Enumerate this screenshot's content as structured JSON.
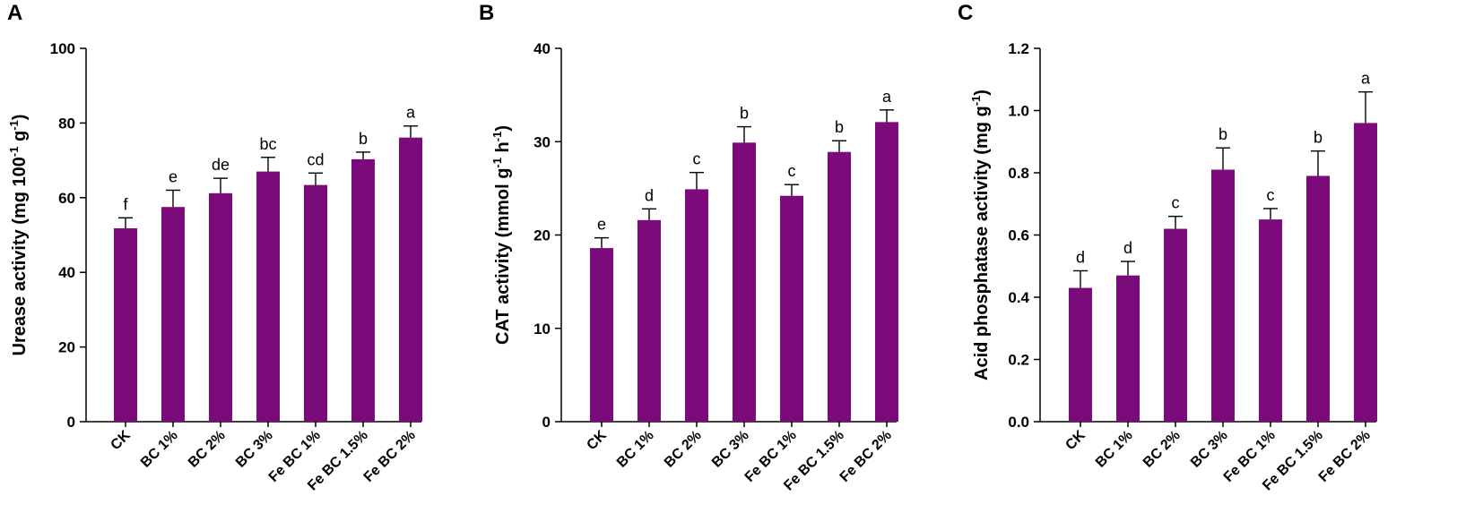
{
  "chart_data": [
    {
      "type": "bar",
      "panel": "A",
      "categories": [
        "CK",
        "BC 1%",
        "BC 2%",
        "BC 3%",
        "Fe BC 1%",
        "Fe BC 1.5%",
        "Fe BC 2%"
      ],
      "values": [
        51.8,
        57.5,
        61.2,
        67.0,
        63.4,
        70.3,
        76.1
      ],
      "errors": [
        2.8,
        4.5,
        4.0,
        3.8,
        3.2,
        1.9,
        3.1
      ],
      "significance": [
        "f",
        "e",
        "de",
        "bc",
        "cd",
        "b",
        "a"
      ],
      "ylabel": "Urease activity",
      "ylabel_unit": "(mg 100",
      "ylabel_sup1": "-1",
      "ylabel_unit2": "g",
      "ylabel_sup2": "-1",
      "ylabel_close": ")",
      "ylim": [
        0,
        100
      ],
      "yticks": [
        0,
        20,
        40,
        60,
        80,
        100
      ],
      "ytick_labels": [
        "0",
        "20",
        "40",
        "60",
        "80",
        "100"
      ],
      "color": "#7b0a7b"
    },
    {
      "type": "bar",
      "panel": "B",
      "categories": [
        "CK",
        "BC 1%",
        "BC 2%",
        "BC 3%",
        "Fe BC 1%",
        "Fe BC 1.5%",
        "Fe BC 2%"
      ],
      "values": [
        18.6,
        21.6,
        24.9,
        29.9,
        24.2,
        28.9,
        32.1
      ],
      "errors": [
        1.1,
        1.2,
        1.8,
        1.7,
        1.2,
        1.2,
        1.3
      ],
      "significance": [
        "e",
        "d",
        "c",
        "b",
        "c",
        "b",
        "a"
      ],
      "ylabel": "CAT activity",
      "ylabel_unit": "(mmol g",
      "ylabel_sup1": "-1",
      "ylabel_unit2": "h",
      "ylabel_sup2": "-1",
      "ylabel_close": ")",
      "ylim": [
        0,
        40
      ],
      "yticks": [
        0,
        10,
        20,
        30,
        40
      ],
      "ytick_labels": [
        "0",
        "10",
        "20",
        "30",
        "40"
      ],
      "color": "#7b0a7b"
    },
    {
      "type": "bar",
      "panel": "C",
      "categories": [
        "CK",
        "BC 1%",
        "BC 2%",
        "BC 3%",
        "Fe BC 1%",
        "Fe BC 1.5%",
        "Fe BC 2%"
      ],
      "values": [
        0.43,
        0.47,
        0.62,
        0.81,
        0.65,
        0.79,
        0.96
      ],
      "errors": [
        0.055,
        0.045,
        0.04,
        0.07,
        0.035,
        0.08,
        0.1
      ],
      "significance": [
        "d",
        "d",
        "c",
        "b",
        "c",
        "b",
        "a"
      ],
      "ylabel": "Acid phosphatase activity",
      "ylabel_unit": "(mg g",
      "ylabel_sup1": "-1",
      "ylabel_unit2": "",
      "ylabel_sup2": "",
      "ylabel_close": ")",
      "ylim": [
        0,
        1.2
      ],
      "yticks": [
        0,
        0.2,
        0.4,
        0.6,
        0.8,
        1.0,
        1.2
      ],
      "ytick_labels": [
        "0.0",
        "0.2",
        "0.4",
        "0.6",
        "0.8",
        "1.0",
        "1.2"
      ],
      "color": "#7b0a7b"
    }
  ]
}
